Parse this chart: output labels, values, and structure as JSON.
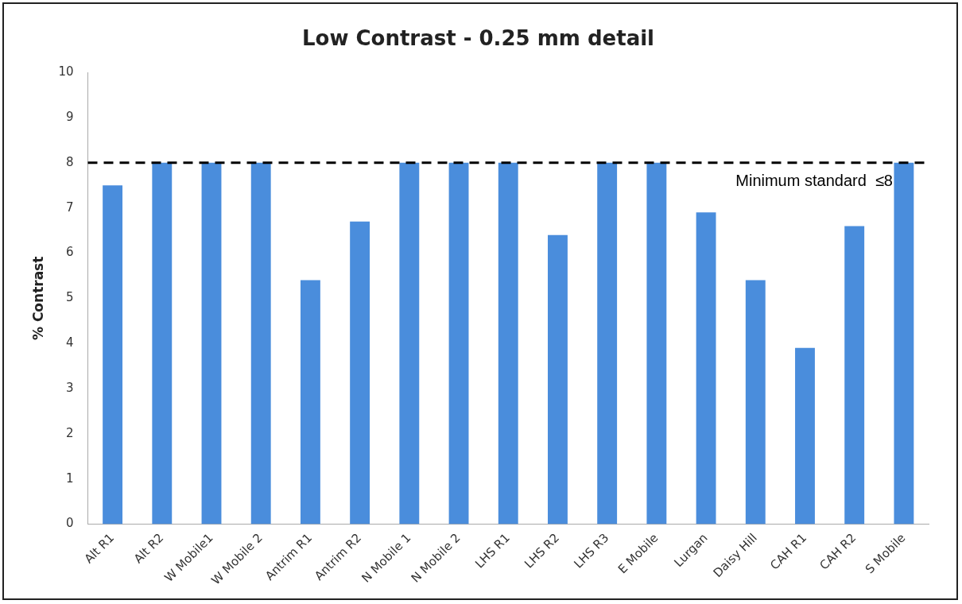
{
  "chart_data": {
    "type": "bar",
    "title": "Low Contrast - 0.25 mm detail",
    "ylabel": "% Contrast",
    "categories": [
      "Alt R1",
      "Alt R2",
      "W Mobile1",
      "W Mobile 2",
      "Antrim R1",
      "Antrim R2",
      "N Mobile 1",
      "N Mobile 2",
      "LHS R1",
      "LHS R2",
      "LHS R3",
      "E Mobile",
      "Lurgan",
      "Daisy Hill",
      "CAH R1",
      "CAH R2",
      "S Mobile"
    ],
    "values": [
      7.5,
      8,
      8,
      8,
      5.4,
      6.7,
      8,
      8,
      8,
      6.4,
      8,
      8,
      6.9,
      5.4,
      3.9,
      6.6,
      8
    ],
    "color": "#4a8ddc",
    "ylim": [
      0,
      10
    ],
    "yticks": [
      0,
      1,
      2,
      3,
      4,
      5,
      6,
      7,
      8,
      9,
      10
    ],
    "ref_lines": [
      {
        "axis": "y",
        "value": 8,
        "label": "Minimum standard  ≤8",
        "color": "#000000",
        "line_style": "dashed"
      }
    ],
    "grid": false,
    "legend": false
  }
}
